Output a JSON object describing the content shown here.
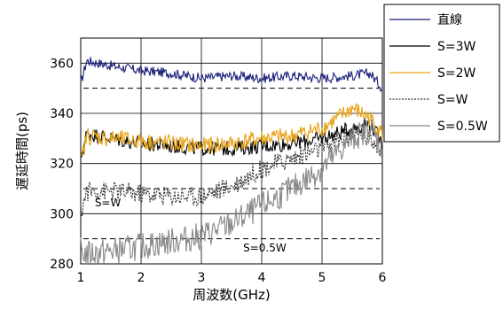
{
  "chart_data": {
    "type": "line",
    "xlabel": "周波数(GHz)",
    "ylabel": "遅延時間(ps)",
    "xlim": [
      1,
      6
    ],
    "ylim": [
      280,
      370
    ],
    "x_ticks": [
      1,
      2,
      3,
      4,
      5,
      6
    ],
    "y_ticks": [
      280,
      300,
      320,
      340,
      360
    ],
    "grid": true,
    "legend_position": "top-right",
    "series": [
      {
        "name": "直線",
        "color": "#1a1f7a",
        "style": "solid",
        "x": [
          1.0,
          1.1,
          1.5,
          2.0,
          2.5,
          3.0,
          3.5,
          4.0,
          4.5,
          5.0,
          5.5,
          5.8,
          6.0
        ],
        "y": [
          352,
          361,
          359,
          357,
          356,
          354,
          355,
          354,
          355,
          354,
          355,
          356,
          350
        ]
      },
      {
        "name": "S=3W",
        "color": "#000000",
        "style": "solid",
        "x": [
          1.0,
          1.1,
          1.5,
          2.0,
          2.5,
          3.0,
          3.5,
          4.0,
          4.5,
          5.0,
          5.5,
          5.8,
          6.0
        ],
        "y": [
          322,
          332,
          330,
          328,
          327,
          326,
          326,
          327,
          328,
          330,
          334,
          336,
          328
        ]
      },
      {
        "name": "S=2W",
        "color": "#e8a317",
        "style": "solid",
        "x": [
          1.0,
          1.1,
          1.5,
          2.0,
          2.5,
          3.0,
          3.5,
          4.0,
          4.5,
          5.0,
          5.5,
          5.8,
          6.0
        ],
        "y": [
          320,
          331,
          330,
          329,
          328,
          327,
          328,
          330,
          331,
          334,
          342,
          338,
          332
        ]
      },
      {
        "name": "S=W",
        "color": "#333333",
        "style": "dotted",
        "x": [
          1.0,
          1.1,
          1.5,
          2.0,
          2.5,
          3.0,
          3.5,
          4.0,
          4.5,
          5.0,
          5.5,
          5.8,
          6.0
        ],
        "y": [
          300,
          309,
          309,
          308,
          307,
          307,
          311,
          318,
          322,
          326,
          332,
          330,
          326
        ]
      },
      {
        "name": "S=0.5W",
        "color": "#888888",
        "style": "solid",
        "x": [
          1.0,
          1.1,
          1.5,
          2.0,
          2.5,
          3.0,
          3.5,
          4.0,
          4.5,
          5.0,
          5.5,
          5.8,
          6.0
        ],
        "y": [
          285,
          284,
          285,
          287,
          289,
          291,
          296,
          303,
          310,
          318,
          330,
          334,
          326
        ]
      }
    ],
    "reference_lines": [
      {
        "y": 350,
        "style": "dashed"
      },
      {
        "y": 310,
        "style": "dashed"
      },
      {
        "y": 290,
        "style": "dashed"
      }
    ],
    "annotations": [
      {
        "text": "S=W",
        "x": 1.45,
        "y": 303
      },
      {
        "text": "S=0.5W",
        "x": 4.05,
        "y": 285
      }
    ]
  }
}
